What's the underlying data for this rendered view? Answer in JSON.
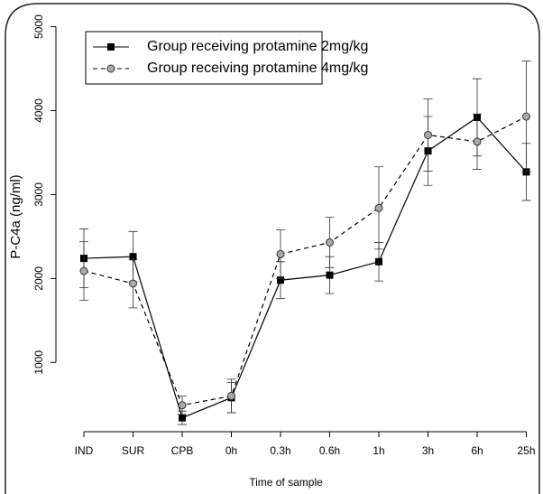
{
  "chart_data": {
    "type": "line",
    "x_label": "Time of sample",
    "y_label": "P-C4a (ng/ml)",
    "categories": [
      "IND",
      "SUR",
      "CPB",
      "0h",
      "0.3h",
      "0.6h",
      "1h",
      "3h",
      "6h",
      "25h"
    ],
    "series": [
      {
        "name": "Group receiving protamine 2mg/kg",
        "color": "#000000",
        "marker": "square",
        "dash": "solid",
        "values": [
          2240,
          2260,
          340,
          580,
          1980,
          2040,
          2200,
          3520,
          3920,
          3270
        ],
        "errors": [
          350,
          300,
          80,
          180,
          220,
          220,
          230,
          410,
          460,
          340
        ]
      },
      {
        "name": "Group receiving protamine 4mg/kg",
        "color": "#000000",
        "marker": "circle",
        "dash": "dashed",
        "values": [
          2090,
          1940,
          490,
          600,
          2290,
          2430,
          2840,
          3710,
          3630,
          3930
        ],
        "errors": [
          350,
          290,
          110,
          200,
          290,
          300,
          490,
          430,
          330,
          660
        ]
      }
    ],
    "ylim": [
      250,
      5200
    ],
    "yticks": [
      1000,
      2000,
      3000,
      4000,
      5000
    ],
    "legend": "top-left"
  }
}
